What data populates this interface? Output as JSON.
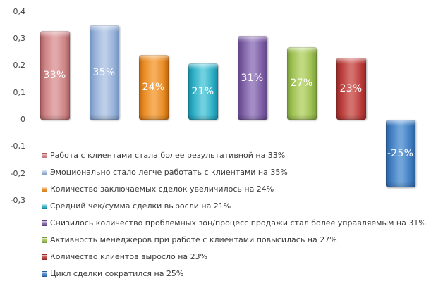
{
  "chart": {
    "background": "#ffffff",
    "axis_color": "#8c8c8c",
    "tick_label_color": "#3f3f3f",
    "legend_text_color": "#3a3a3a",
    "value_label_color": "#ffffff"
  },
  "chart_data": {
    "type": "bar",
    "title": "",
    "xlabel": "",
    "ylabel": "",
    "grid": false,
    "ylim": [
      -0.3,
      0.4
    ],
    "categories": [
      "Работа с клиентами стала более результативной на 33%",
      "Эмоционально стало легче работать с клиентами на 35%",
      "Количество заключаемых сделок увеличилось на 24%",
      "Средний чек/сумма сделки выросли на 21%",
      "Снизилось количество проблемных зон/процесс продажи стал более управляемым на 31%",
      "Активность менеджеров при работе с клиентами повысилась на 27%",
      "Количество клиентов выросло на 23%",
      "Цикл сделки сократился на 25%"
    ],
    "values": [
      0.33,
      0.35,
      0.24,
      0.21,
      0.31,
      0.27,
      0.23,
      -0.25
    ],
    "bar_value_labels": [
      "33%",
      "35%",
      "24%",
      "21%",
      "31%",
      "27%",
      "23%",
      "-25%"
    ],
    "series_colors": [
      {
        "dark": "#a85c60",
        "mid": "#cd8485",
        "light": "#e2a9aa"
      },
      {
        "dark": "#7191bf",
        "mid": "#95b0d8",
        "light": "#bccee8"
      },
      {
        "dark": "#bc660f",
        "mid": "#e88b23",
        "light": "#f6ae5a"
      },
      {
        "dark": "#1989a1",
        "mid": "#2baec5",
        "light": "#6fd0df"
      },
      {
        "dark": "#5d4384",
        "mid": "#7a5ca3",
        "light": "#a48dc6"
      },
      {
        "dark": "#7a9a3d",
        "mid": "#9cbf50",
        "light": "#c1da82"
      },
      {
        "dark": "#922a29",
        "mid": "#bb3c3a",
        "light": "#d4716d"
      },
      {
        "dark": "#2c5e97",
        "mid": "#3e7cc1",
        "light": "#71a5da"
      }
    ],
    "y_axis": {
      "ticks": [
        {
          "label": "0,4",
          "value": 0.4
        },
        {
          "label": "0,3",
          "value": 0.3
        },
        {
          "label": "0,2",
          "value": 0.2
        },
        {
          "label": "0,1",
          "value": 0.1
        },
        {
          "label": "0",
          "value": 0.0
        },
        {
          "label": "-0,1",
          "value": -0.1
        },
        {
          "label": "-0,2",
          "value": -0.2
        },
        {
          "label": "-0,3",
          "value": -0.3
        }
      ]
    },
    "legend": {
      "position": "inside-bottom-left",
      "items": [
        {
          "label": "Работа с клиентами стала более результативной на 33%"
        },
        {
          "label": "Эмоционально стало легче работать с клиентами на 35%"
        },
        {
          "label": "Количество заключаемых сделок увеличилось на 24%"
        },
        {
          "label": "Средний чек/сумма сделки выросли на 21%"
        },
        {
          "label": "Снизилось количество проблемных зон/процесс продажи стал более управляемым на 31%"
        },
        {
          "label": "Активность менеджеров при работе с клиентами повысилась на 27%"
        },
        {
          "label": "Количество клиентов выросло на 23%"
        },
        {
          "label": "Цикл сделки сократился на 25%"
        }
      ]
    }
  }
}
